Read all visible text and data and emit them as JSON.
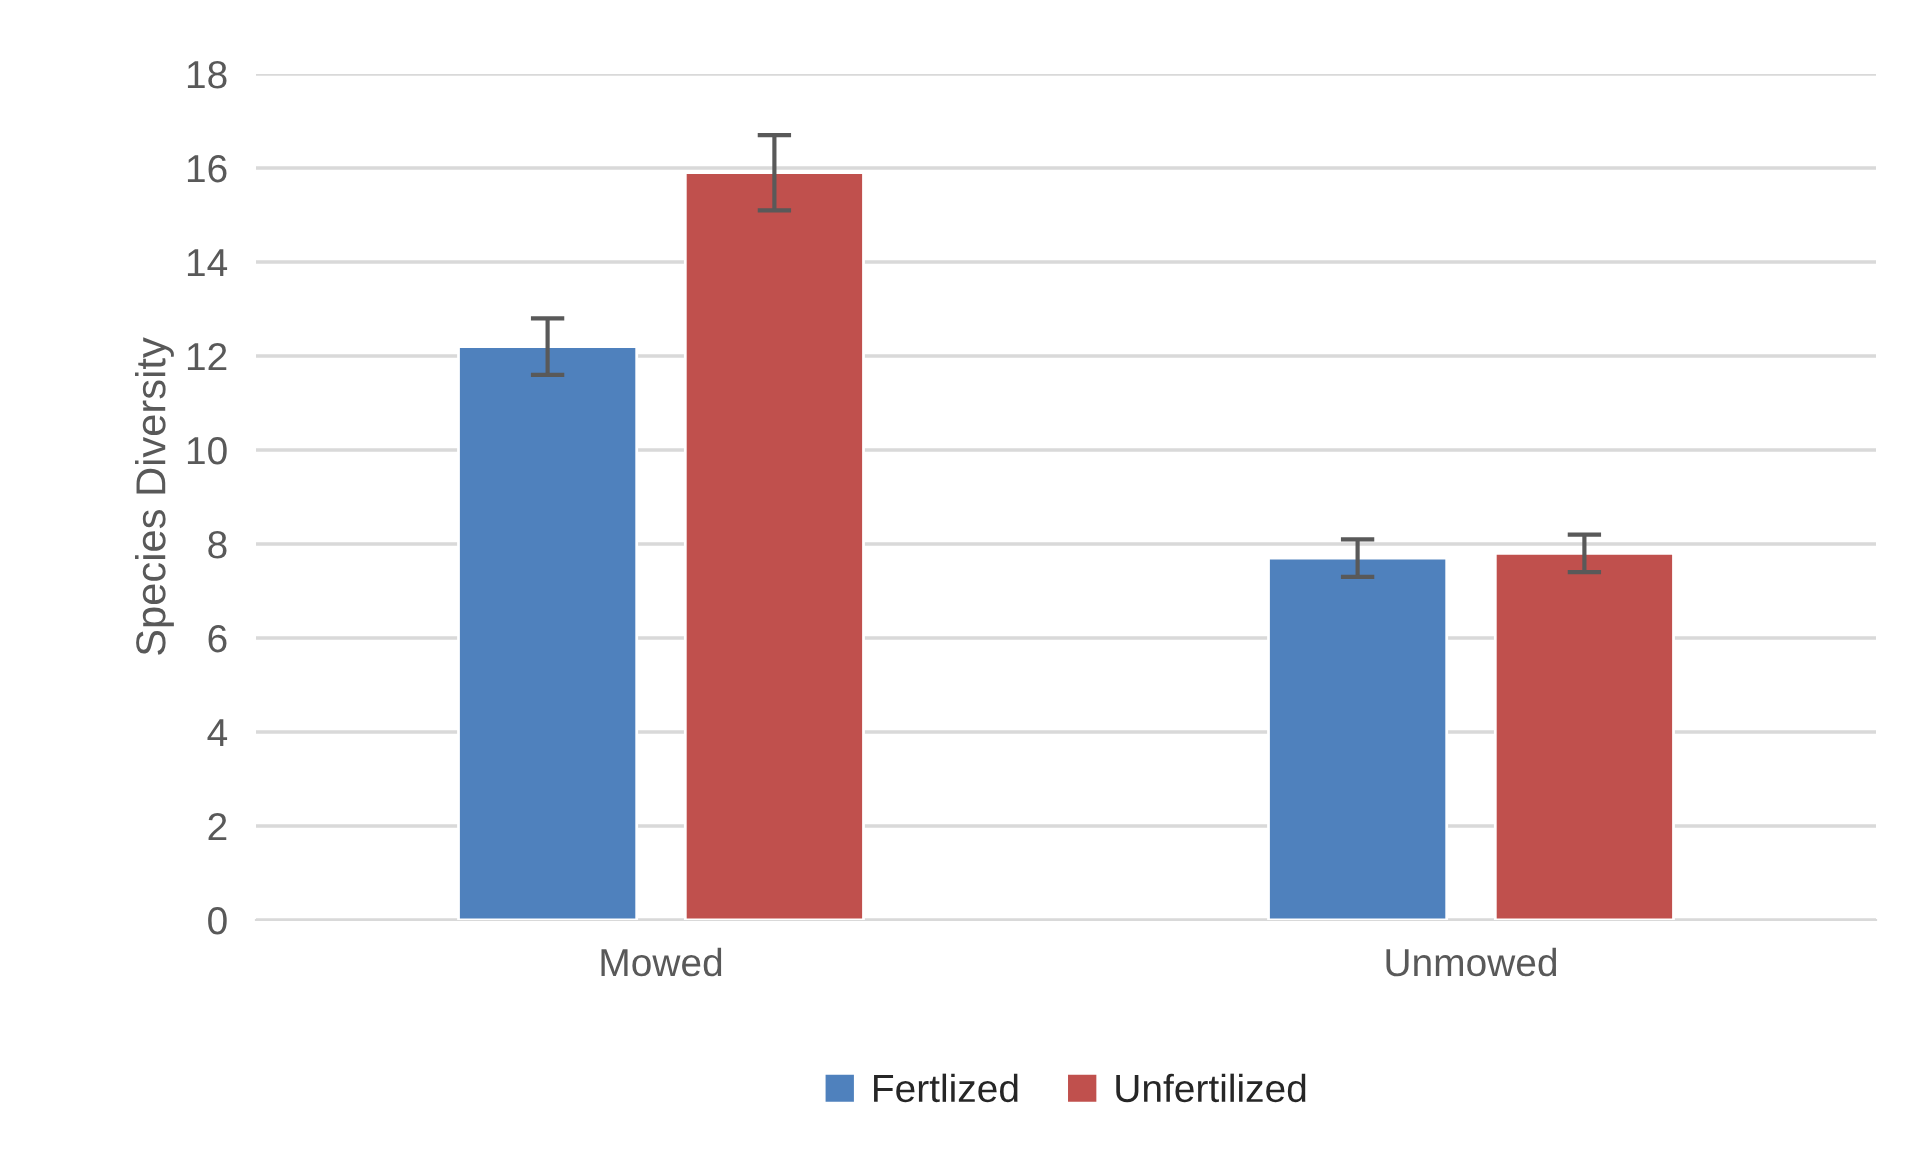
{
  "chart_data": {
    "type": "bar",
    "ylabel": "Species Diversity",
    "categories": [
      "Mowed",
      "Unmowed"
    ],
    "series": [
      {
        "name": "Fertlized",
        "color": "#4f81bd",
        "values": [
          12.2,
          7.7
        ],
        "errors": [
          0.6,
          0.4
        ]
      },
      {
        "name": "Unfertilized",
        "color": "#c0504d",
        "values": [
          15.9,
          7.8
        ],
        "errors": [
          0.8,
          0.4
        ]
      }
    ],
    "ylim": [
      0,
      18
    ],
    "yticks": [
      0,
      2,
      4,
      6,
      8,
      10,
      12,
      14,
      16,
      18
    ],
    "grid": "y",
    "legend": "bottom"
  }
}
